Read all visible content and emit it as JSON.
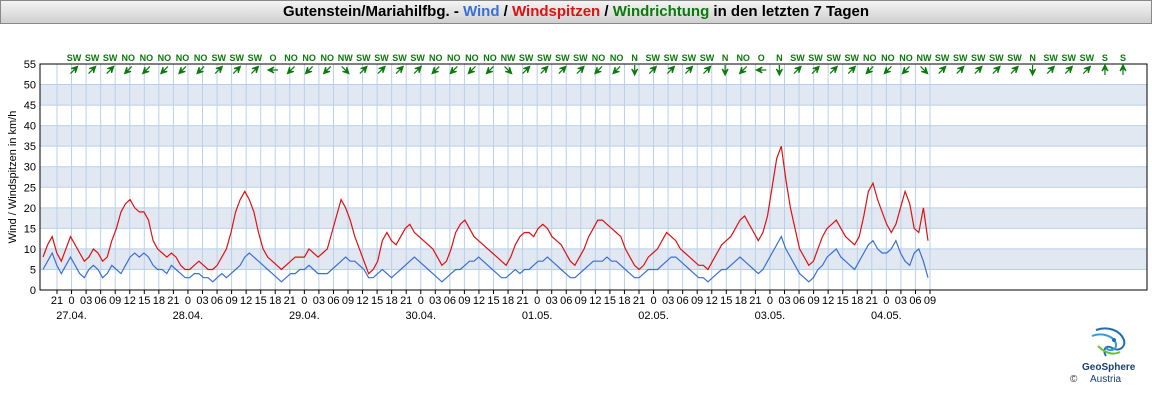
{
  "header": {
    "station": "Gutenstein/Mariahilfbg. - ",
    "wind": "Wind",
    "sep1": " / ",
    "spitzen": "Windspitzen",
    "sep2": " / ",
    "richtung": "Windrichtung",
    "suffix": " in den letzten 7 Tagen"
  },
  "logo": {
    "name": "GeoSphere",
    "sub": "Austria",
    "copyright": "©"
  },
  "colors": {
    "wind": "#3a6fd8",
    "gust": "#e01010",
    "direction": "#0a7a0a",
    "band": "#e2e8f2",
    "grid": "#b9d0ea"
  },
  "chart_data": {
    "type": "line",
    "ylabel": "Wind / Windspitzen in km/h",
    "ylim": [
      0,
      55
    ],
    "yticks": [
      0,
      5,
      10,
      15,
      20,
      25,
      30,
      35,
      40,
      45,
      50,
      55
    ],
    "hour_ticks": [
      "21",
      "0",
      "03",
      "06",
      "09",
      "12",
      "15",
      "18",
      "21",
      "0",
      "03",
      "06",
      "09",
      "12",
      "15",
      "18",
      "21",
      "0",
      "03",
      "06",
      "09",
      "12",
      "15",
      "18",
      "21",
      "0",
      "03",
      "06",
      "09",
      "12",
      "15",
      "18",
      "21",
      "0",
      "03",
      "06",
      "09",
      "12",
      "15",
      "18",
      "21",
      "0",
      "03",
      "06",
      "09",
      "12",
      "15",
      "18",
      "21",
      "0",
      "03",
      "06",
      "09",
      "12",
      "15",
      "18",
      "21",
      "0",
      "03",
      "06",
      "09"
    ],
    "day_labels": [
      {
        "label": "27.04.",
        "tick": 1
      },
      {
        "label": "28.04.",
        "tick": 9
      },
      {
        "label": "29.04.",
        "tick": 17
      },
      {
        "label": "30.04.",
        "tick": 25
      },
      {
        "label": "01.05.",
        "tick": 33
      },
      {
        "label": "02.05.",
        "tick": 41
      },
      {
        "label": "03.05.",
        "tick": 49
      },
      {
        "label": "04.05.",
        "tick": 57
      }
    ],
    "directions": [
      "SW",
      "SW",
      "SW",
      "NO",
      "NO",
      "NO",
      "NO",
      "NO",
      "SW",
      "SW",
      "SW",
      "O",
      "NO",
      "NO",
      "NO",
      "NW",
      "SW",
      "SW",
      "SW",
      "SW",
      "NO",
      "NO",
      "NO",
      "NO",
      "NW",
      "SW",
      "SW",
      "SW",
      "SW",
      "NO",
      "NO",
      "N",
      "SW",
      "SW",
      "SW",
      "SW",
      "N",
      "NO",
      "O",
      "N",
      "SW",
      "SW",
      "SW",
      "SW",
      "NO",
      "NO",
      "NO",
      "NW",
      "SW",
      "SW",
      "SW",
      "SW",
      "SW",
      "N",
      "SW",
      "SW",
      "SW",
      "S",
      "S"
    ],
    "dir_angles": {
      "N": 0,
      "NO": 45,
      "O": 90,
      "SO": 135,
      "S": 180,
      "SW": 225,
      "W": 270,
      "NW": 315
    },
    "series": [
      {
        "name": "Wind",
        "color": "#3a6fd8",
        "values": [
          5,
          7,
          9,
          6,
          4,
          6,
          8,
          6,
          4,
          3,
          5,
          6,
          5,
          3,
          4,
          6,
          5,
          4,
          6,
          8,
          9,
          8,
          9,
          8,
          6,
          5,
          5,
          4,
          6,
          5,
          4,
          3,
          3,
          4,
          4,
          3,
          3,
          2,
          3,
          4,
          3,
          4,
          5,
          6,
          8,
          9,
          8,
          7,
          6,
          5,
          4,
          3,
          2,
          3,
          4,
          4,
          5,
          5,
          6,
          5,
          4,
          4,
          4,
          5,
          6,
          7,
          8,
          7,
          7,
          6,
          5,
          3,
          3,
          4,
          5,
          4,
          3,
          4,
          5,
          6,
          7,
          8,
          7,
          6,
          5,
          4,
          3,
          2,
          3,
          4,
          5,
          5,
          6,
          7,
          7,
          8,
          7,
          6,
          5,
          4,
          3,
          3,
          4,
          5,
          4,
          5,
          5,
          6,
          7,
          7,
          8,
          7,
          6,
          5,
          4,
          3,
          3,
          4,
          5,
          6,
          7,
          7,
          7,
          8,
          7,
          7,
          6,
          5,
          4,
          3,
          3,
          4,
          5,
          5,
          5,
          6,
          7,
          8,
          8,
          7,
          6,
          5,
          4,
          3,
          3,
          2,
          3,
          4,
          5,
          5,
          6,
          7,
          8,
          7,
          6,
          5,
          4,
          5,
          7,
          9,
          11,
          13,
          10,
          8,
          6,
          4,
          3,
          2,
          3,
          5,
          6,
          8,
          9,
          10,
          8,
          7,
          6,
          5,
          7,
          9,
          11,
          12,
          10,
          9,
          9,
          10,
          12,
          9,
          7,
          6,
          9,
          10,
          7,
          3
        ]
      },
      {
        "name": "Windspitzen",
        "color": "#e01010",
        "values": [
          8,
          11,
          13,
          9,
          7,
          10,
          13,
          11,
          9,
          7,
          8,
          10,
          9,
          7,
          8,
          12,
          15,
          19,
          21,
          22,
          20,
          19,
          19,
          17,
          12,
          10,
          9,
          8,
          9,
          8,
          6,
          5,
          5,
          6,
          7,
          6,
          5,
          5,
          6,
          8,
          10,
          14,
          19,
          22,
          24,
          22,
          19,
          14,
          10,
          8,
          7,
          6,
          5,
          6,
          7,
          8,
          8,
          8,
          10,
          9,
          8,
          9,
          10,
          14,
          18,
          22,
          20,
          17,
          13,
          10,
          7,
          4,
          5,
          7,
          12,
          14,
          12,
          11,
          13,
          15,
          16,
          14,
          13,
          12,
          11,
          10,
          8,
          6,
          7,
          10,
          14,
          16,
          17,
          15,
          13,
          12,
          11,
          10,
          9,
          8,
          7,
          6,
          8,
          11,
          13,
          14,
          14,
          13,
          15,
          16,
          15,
          13,
          12,
          11,
          9,
          7,
          6,
          8,
          10,
          13,
          15,
          17,
          17,
          16,
          15,
          14,
          13,
          10,
          8,
          6,
          5,
          6,
          8,
          9,
          10,
          12,
          14,
          13,
          12,
          10,
          9,
          8,
          7,
          6,
          6,
          5,
          7,
          9,
          11,
          12,
          13,
          15,
          17,
          18,
          16,
          14,
          12,
          14,
          18,
          25,
          32,
          35,
          27,
          20,
          15,
          10,
          8,
          6,
          7,
          10,
          13,
          15,
          16,
          17,
          15,
          13,
          12,
          11,
          13,
          18,
          24,
          26,
          22,
          19,
          16,
          14,
          16,
          20,
          24,
          21,
          15,
          14,
          20,
          12
        ]
      }
    ]
  }
}
